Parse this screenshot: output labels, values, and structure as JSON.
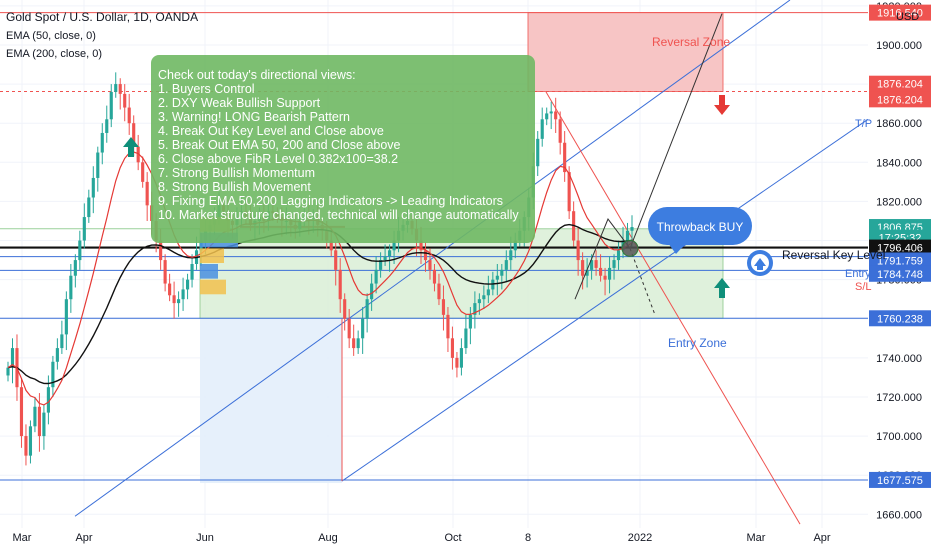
{
  "header": {
    "title": "Gold Spot / U.S. Dollar, 1D, OANDA",
    "indicators": [
      "EMA (50, close, 0)",
      "EMA (200, close, 0)"
    ]
  },
  "currency_label": "USD",
  "annotations": {
    "views_lines": [
      "Check out today's directional views:",
      "1. Buyers Control",
      "2. DXY Weak Bullish Support",
      "3. Warning! LONG Bearish Pattern",
      "4. Break Out Key Level and Close above",
      "5. Break Out EMA 50, 200 and Close above",
      "6. Close above FibR Level 0.382x100=38.2",
      "7. Strong Bullish Momentum",
      "8. Strong Bullish Movement",
      "9. Fixing EMA 50,200 Lagging Indicators -> Leading Indicators",
      "10. Market structure changed, technical will change automatically"
    ],
    "reversal_zone": "Reversal Zone",
    "entry_zone": "Entry Zone",
    "throwback": "Throwback BUY",
    "reversal_key_level": "Reversal Key Level",
    "tp": "T/P",
    "entry": "Entry",
    "sl": "S/L"
  },
  "colors": {
    "candle_up": "#26a69a",
    "candle_down": "#ef5350",
    "ema50": "#e53935",
    "ema200": "#111111",
    "trend": "#3b6fd8",
    "reversal_zone_fill": "#f7c5c5",
    "entry_zone_fill": "#d9efd6",
    "note_fill": "#6fb863",
    "throwback_fill": "#3d7de0",
    "arrow_green": "#0f8f7a",
    "arrow_red": "#e53935"
  },
  "chart_data": {
    "type": "candlestick",
    "title": "Gold Spot / U.S. Dollar, 1D, OANDA",
    "y_ticks": [
      1660,
      1680,
      1700,
      1720,
      1740,
      1760,
      1780,
      1800,
      1820,
      1840,
      1860,
      1880,
      1900,
      1920
    ],
    "ylim": [
      1653,
      1923
    ],
    "x_ticks": [
      "Mar",
      "Apr",
      "Jun",
      "Aug",
      "Oct",
      "8",
      "2022",
      "Mar",
      "Apr"
    ],
    "price_labels": [
      {
        "value": "1916.540",
        "price": 1916.54,
        "color": "#ef5350"
      },
      {
        "value": "1876.204",
        "price": 1880.2,
        "color": "#ef5350"
      },
      {
        "value": "1876.204",
        "price": 1872.2,
        "color": "#ef5350"
      },
      {
        "value": "1806.875",
        "price": 1806.9,
        "color": "#26a69a"
      },
      {
        "value": "17:25:32",
        "price": 1801.5,
        "color": "#26a69a"
      },
      {
        "value": "1796.406",
        "price": 1796.4,
        "color": "#111111"
      },
      {
        "value": "1791.759",
        "price": 1789.8,
        "color": "#3b6fd8"
      },
      {
        "value": "1784.748",
        "price": 1783.0,
        "color": "#3b6fd8"
      },
      {
        "value": "1760.238",
        "price": 1760.24,
        "color": "#3b6fd8"
      },
      {
        "value": "1677.575",
        "price": 1677.58,
        "color": "#3b6fd8"
      }
    ],
    "levels": {
      "reversal_zone_top": 1916.54,
      "tp": 1876.204,
      "reversal_key": 1796.406,
      "entry": 1791.759,
      "sl": 1784.748,
      "entry_zone_bottom": 1760.238,
      "support_low": 1677.575
    },
    "series": [
      {
        "name": "XAUUSD",
        "close": [
          1735,
          1745,
          1725,
          1700,
          1690,
          1705,
          1715,
          1700,
          1712,
          1725,
          1738,
          1745,
          1752,
          1770,
          1782,
          1790,
          1800,
          1812,
          1822,
          1832,
          1845,
          1855,
          1862,
          1876,
          1880,
          1875,
          1868,
          1860,
          1848,
          1840,
          1830,
          1818,
          1810,
          1800,
          1790,
          1778,
          1772,
          1768,
          1770,
          1775,
          1780,
          1788,
          1795,
          1800,
          1805,
          1808,
          1812,
          1818,
          1815,
          1810,
          1808,
          1812,
          1815,
          1812,
          1808,
          1810,
          1812,
          1810,
          1815,
          1814,
          1812,
          1810,
          1810,
          1808,
          1806,
          1810,
          1812,
          1811,
          1812,
          1808,
          1805,
          1800,
          1795,
          1785,
          1770,
          1760,
          1750,
          1745,
          1750,
          1760,
          1770,
          1778,
          1785,
          1790,
          1792,
          1795,
          1800,
          1805,
          1808,
          1810,
          1806,
          1800,
          1795,
          1790,
          1785,
          1778,
          1770,
          1762,
          1750,
          1740,
          1735,
          1745,
          1755,
          1762,
          1768,
          1770,
          1772,
          1775,
          1780,
          1782,
          1785,
          1790,
          1795,
          1800,
          1805,
          1812,
          1822,
          1838,
          1852,
          1862,
          1865,
          1866,
          1862,
          1850,
          1835,
          1815,
          1800,
          1790,
          1782,
          1785,
          1790,
          1786,
          1782,
          1780,
          1786,
          1790,
          1795,
          1800,
          1805,
          1806.9
        ]
      }
    ]
  }
}
